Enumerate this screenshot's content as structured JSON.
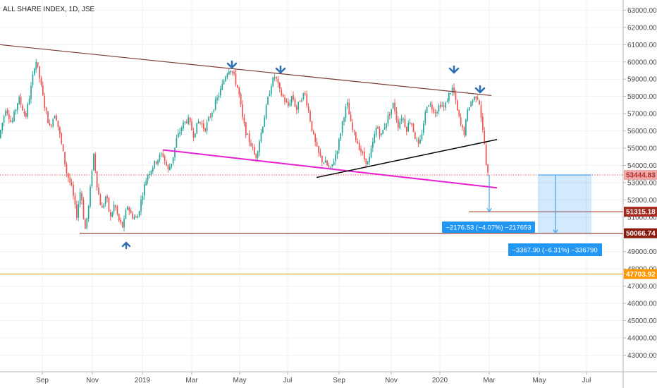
{
  "chart_data": {
    "type": "candlestick",
    "title": "ALL SHARE INDEX, 1D, JSE",
    "y_ticks": [
      "63000.00",
      "62000.00",
      "61000.00",
      "60000.00",
      "59000.00",
      "58000.00",
      "57000.00",
      "56000.00",
      "55000.00",
      "54000.00",
      "53000.00",
      "52000.00",
      "51000.00",
      "50000.00",
      "49000.00",
      "48000.00",
      "47000.00",
      "46000.00",
      "45000.00",
      "44000.00",
      "43000.00"
    ],
    "x_ticks": [
      "Sep",
      "Nov",
      "2019",
      "Mar",
      "May",
      "Jul",
      "Sep",
      "Nov",
      "2020",
      "Mar",
      "May",
      "Jul"
    ],
    "ylim": [
      42300,
      63400
    ],
    "price_tags": [
      {
        "label": "53444.83",
        "value": 53444.83,
        "color": "#f0a9a9",
        "text_color": "#b22a2a",
        "line": "dotted"
      },
      {
        "label": "51315.18",
        "value": 51315.18,
        "color": "#a32a1f",
        "text_color": "#ffffff",
        "line": "solid"
      },
      {
        "label": "50066.74",
        "value": 50066.74,
        "color": "#8b1a0f",
        "text_color": "#ffffff",
        "line": "solid"
      },
      {
        "label": "47703.92",
        "value": 47703.92,
        "color": "#ff9800",
        "text_color": "#ffffff",
        "line": "solid"
      }
    ],
    "measurements": [
      {
        "label": "−2176.53 (−4.07%) −217653"
      },
      {
        "label": "−3367.90 (−6.31%) −336790"
      }
    ],
    "colors": {
      "up": "#26a69a",
      "down": "#ef5350",
      "resistance": "#7b3a33",
      "support": "#e81fd0",
      "trendline": "#000000",
      "arrow": "#2f6fb5",
      "measure": "#2196f3"
    }
  }
}
